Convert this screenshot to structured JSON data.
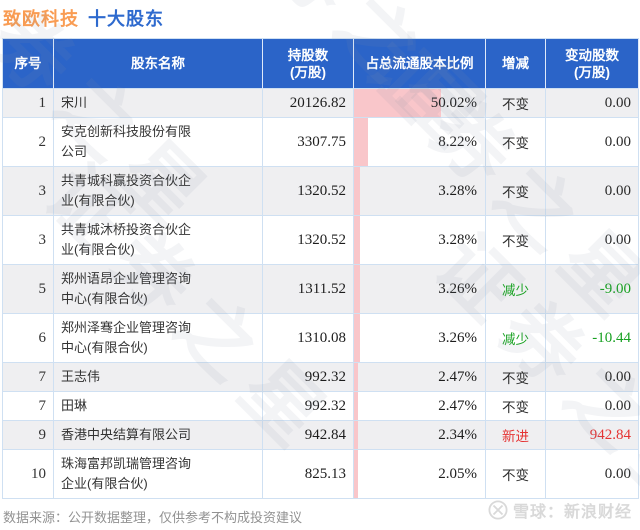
{
  "title": {
    "company": "致欧科技",
    "subtitle": "十大股东"
  },
  "table": {
    "headers": [
      {
        "lines": [
          "序号"
        ]
      },
      {
        "lines": [
          "股东名称"
        ]
      },
      {
        "lines": [
          "持股数",
          "(万股)"
        ]
      },
      {
        "lines": [
          "占总流通股本比例"
        ]
      },
      {
        "lines": [
          "增减"
        ]
      },
      {
        "lines": [
          "变动股数",
          "(万股)"
        ]
      }
    ],
    "rows": [
      {
        "rank": "1",
        "name": "宋川",
        "shares": "20126.82",
        "pct": "50.02%",
        "pct_value": 50.02,
        "change": "不变",
        "change_type": "same",
        "delta": "0.00"
      },
      {
        "rank": "2",
        "name": "安克创新科技股份有限公司",
        "shares": "3307.75",
        "pct": "8.22%",
        "pct_value": 8.22,
        "change": "不变",
        "change_type": "same",
        "delta": "0.00"
      },
      {
        "rank": "3",
        "name": "共青城科赢投资合伙企业(有限合伙)",
        "shares": "1320.52",
        "pct": "3.28%",
        "pct_value": 3.28,
        "change": "不变",
        "change_type": "same",
        "delta": "0.00"
      },
      {
        "rank": "3",
        "name": "共青城沐桥投资合伙企业(有限合伙)",
        "shares": "1320.52",
        "pct": "3.28%",
        "pct_value": 3.28,
        "change": "不变",
        "change_type": "same",
        "delta": "0.00"
      },
      {
        "rank": "5",
        "name": "郑州语昂企业管理咨询中心(有限合伙)",
        "shares": "1311.52",
        "pct": "3.26%",
        "pct_value": 3.26,
        "change": "减少",
        "change_type": "down",
        "delta": "-9.00"
      },
      {
        "rank": "6",
        "name": "郑州泽骞企业管理咨询中心(有限合伙)",
        "shares": "1310.08",
        "pct": "3.26%",
        "pct_value": 3.26,
        "change": "减少",
        "change_type": "down",
        "delta": "-10.44"
      },
      {
        "rank": "7",
        "name": "王志伟",
        "shares": "992.32",
        "pct": "2.47%",
        "pct_value": 2.47,
        "change": "不变",
        "change_type": "same",
        "delta": "0.00"
      },
      {
        "rank": "7",
        "name": "田琳",
        "shares": "992.32",
        "pct": "2.47%",
        "pct_value": 2.47,
        "change": "不变",
        "change_type": "same",
        "delta": "0.00"
      },
      {
        "rank": "9",
        "name": "香港中央结算有限公司",
        "shares": "942.84",
        "pct": "2.34%",
        "pct_value": 2.34,
        "change": "新进",
        "change_type": "new",
        "delta": "942.84"
      },
      {
        "rank": "10",
        "name": "珠海富邦凯瑞管理咨询企业(有限合伙)",
        "shares": "825.13",
        "pct": "2.05%",
        "pct_value": 2.05,
        "change": "不变",
        "change_type": "same",
        "delta": "0.00"
      }
    ]
  },
  "footer": {
    "source": "数据来源：公开数据整理，仅供参考不构成投资建议",
    "brand": "雪球：新浪财经"
  },
  "watermark": {
    "text": "证券之星"
  },
  "colors": {
    "title_company": "#f99c53",
    "title_subtitle": "#2e6ace",
    "header_bg": "#2b64c8",
    "row_alt_bg": "#efeff1",
    "border": "#cfe0f2",
    "ratio_bar": "#f9c6ca",
    "decrease_green": "#18a122",
    "new_red": "#e53333"
  },
  "chart_data": {
    "type": "table",
    "title": "致欧科技 十大股东",
    "columns": [
      "序号",
      "股东名称",
      "持股数(万股)",
      "占总流通股本比例",
      "增减",
      "变动股数(万股)"
    ],
    "rows": [
      [
        "1",
        "宋川",
        20126.82,
        "50.02%",
        "不变",
        0.0
      ],
      [
        "2",
        "安克创新科技股份有限公司",
        3307.75,
        "8.22%",
        "不变",
        0.0
      ],
      [
        "3",
        "共青城科赢投资合伙企业(有限合伙)",
        1320.52,
        "3.28%",
        "不变",
        0.0
      ],
      [
        "3",
        "共青城沐桥投资合伙企业(有限合伙)",
        1320.52,
        "3.28%",
        "不变",
        0.0
      ],
      [
        "5",
        "郑州语昂企业管理咨询中心(有限合伙)",
        1311.52,
        "3.26%",
        "减少",
        -9.0
      ],
      [
        "6",
        "郑州泽骞企业管理咨询中心(有限合伙)",
        1310.08,
        "3.26%",
        "减少",
        -10.44
      ],
      [
        "7",
        "王志伟",
        992.32,
        "2.47%",
        "不变",
        0.0
      ],
      [
        "7",
        "田琳",
        992.32,
        "2.47%",
        "不变",
        0.0
      ],
      [
        "9",
        "香港中央结算有限公司",
        942.84,
        "2.34%",
        "新进",
        942.84
      ],
      [
        "10",
        "珠海富邦凯瑞管理咨询企业(有限合伙)",
        825.13,
        "2.05%",
        "不变",
        0.0
      ]
    ],
    "bar_overlay": {
      "column": "占总流通股本比例",
      "unit": "percent",
      "max_value": 50.02
    }
  }
}
